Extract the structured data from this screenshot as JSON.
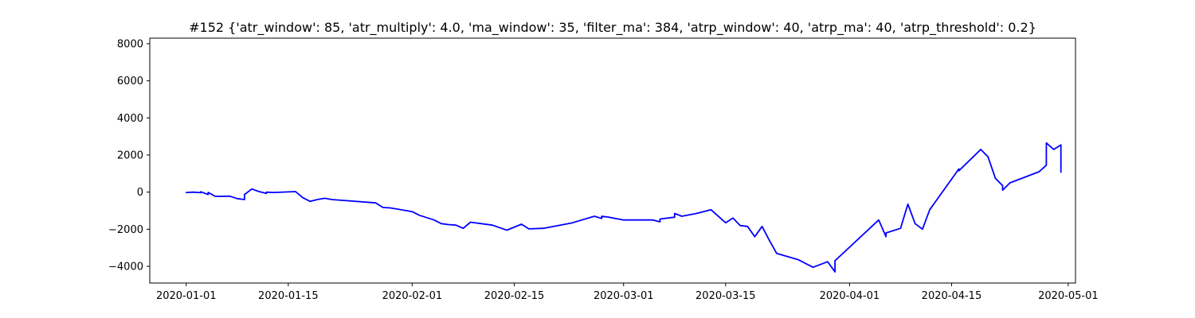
{
  "chart_data": {
    "type": "line",
    "title": "#152 {'atr_window': 85, 'atr_multiply': 4.0, 'ma_window': 35, 'filter_ma': 384, 'atrp_window': 40, 'atrp_ma': 40, 'atrp_threshold': 0.2}",
    "xlabel": "",
    "ylabel": "",
    "grid": false,
    "x_type": "date",
    "xlim": [
      "2019-12-27",
      "2020-05-02"
    ],
    "ylim": [
      -4900,
      8300
    ],
    "x_ticks": [
      "2020-01-01",
      "2020-01-15",
      "2020-02-01",
      "2020-02-15",
      "2020-03-01",
      "2020-03-15",
      "2020-04-01",
      "2020-04-15",
      "2020-05-01"
    ],
    "y_ticks": [
      -4000,
      -2000,
      0,
      2000,
      4000,
      6000,
      8000
    ],
    "series": [
      {
        "color": "#0000ff",
        "points": [
          [
            "2020-01-01",
            0
          ],
          [
            "2020-01-01",
            -20
          ],
          [
            "2020-01-02",
            0
          ],
          [
            "2020-01-03",
            -30
          ],
          [
            "2020-01-03",
            20
          ],
          [
            "2020-01-04",
            -130
          ],
          [
            "2020-01-04",
            -20
          ],
          [
            "2020-01-05",
            -230
          ],
          [
            "2020-01-07",
            -220
          ],
          [
            "2020-01-08",
            -350
          ],
          [
            "2020-01-09",
            -400
          ],
          [
            "2020-01-09",
            -130
          ],
          [
            "2020-01-10",
            170
          ],
          [
            "2020-01-11",
            30
          ],
          [
            "2020-01-12",
            -70
          ],
          [
            "2020-01-12",
            0
          ],
          [
            "2020-01-13",
            -20
          ],
          [
            "2020-01-16",
            30
          ],
          [
            "2020-01-17",
            -300
          ],
          [
            "2020-01-18",
            -500
          ],
          [
            "2020-01-19",
            -400
          ],
          [
            "2020-01-20",
            -330
          ],
          [
            "2020-01-21",
            -400
          ],
          [
            "2020-01-27",
            -580
          ],
          [
            "2020-01-28",
            -830
          ],
          [
            "2020-01-29",
            -850
          ],
          [
            "2020-02-01",
            -1050
          ],
          [
            "2020-02-02",
            -1250
          ],
          [
            "2020-02-04",
            -1500
          ],
          [
            "2020-02-05",
            -1700
          ],
          [
            "2020-02-06",
            -1750
          ],
          [
            "2020-02-07",
            -1780
          ],
          [
            "2020-02-08",
            -1950
          ],
          [
            "2020-02-09",
            -1620
          ],
          [
            "2020-02-12",
            -1780
          ],
          [
            "2020-02-14",
            -2050
          ],
          [
            "2020-02-16",
            -1730
          ],
          [
            "2020-02-17",
            -1980
          ],
          [
            "2020-02-19",
            -1950
          ],
          [
            "2020-02-23",
            -1650
          ],
          [
            "2020-02-26",
            -1300
          ],
          [
            "2020-02-27",
            -1420
          ],
          [
            "2020-02-27",
            -1300
          ],
          [
            "2020-02-28",
            -1350
          ],
          [
            "2020-03-01",
            -1500
          ],
          [
            "2020-03-05",
            -1500
          ],
          [
            "2020-03-06",
            -1600
          ],
          [
            "2020-03-06",
            -1450
          ],
          [
            "2020-03-08",
            -1350
          ],
          [
            "2020-03-08",
            -1150
          ],
          [
            "2020-03-09",
            -1300
          ],
          [
            "2020-03-11",
            -1150
          ],
          [
            "2020-03-13",
            -950
          ],
          [
            "2020-03-15",
            -1650
          ],
          [
            "2020-03-16",
            -1400
          ],
          [
            "2020-03-17",
            -1800
          ],
          [
            "2020-03-18",
            -1850
          ],
          [
            "2020-03-19",
            -2400
          ],
          [
            "2020-03-20",
            -1850
          ],
          [
            "2020-03-21",
            -2600
          ],
          [
            "2020-03-22",
            -3300
          ],
          [
            "2020-03-25",
            -3650
          ],
          [
            "2020-03-27",
            -4050
          ],
          [
            "2020-03-29",
            -3750
          ],
          [
            "2020-03-30",
            -4300
          ],
          [
            "2020-03-30",
            -3700
          ],
          [
            "2020-04-05",
            -1500
          ],
          [
            "2020-04-06",
            -2400
          ],
          [
            "2020-04-06",
            -2200
          ],
          [
            "2020-04-08",
            -1950
          ],
          [
            "2020-04-09",
            -650
          ],
          [
            "2020-04-10",
            -1700
          ],
          [
            "2020-04-11",
            -2000
          ],
          [
            "2020-04-12",
            -950
          ],
          [
            "2020-04-16",
            1250
          ],
          [
            "2020-04-16",
            1150
          ],
          [
            "2020-04-19",
            2300
          ],
          [
            "2020-04-20",
            1900
          ],
          [
            "2020-04-21",
            750
          ],
          [
            "2020-04-22",
            350
          ],
          [
            "2020-04-22",
            100
          ],
          [
            "2020-04-23",
            500
          ],
          [
            "2020-04-27",
            1100
          ],
          [
            "2020-04-28",
            1450
          ],
          [
            "2020-04-28",
            2650
          ],
          [
            "2020-04-29",
            2300
          ],
          [
            "2020-04-30",
            2550
          ],
          [
            "2020-04-30",
            1050
          ]
        ]
      }
    ]
  }
}
